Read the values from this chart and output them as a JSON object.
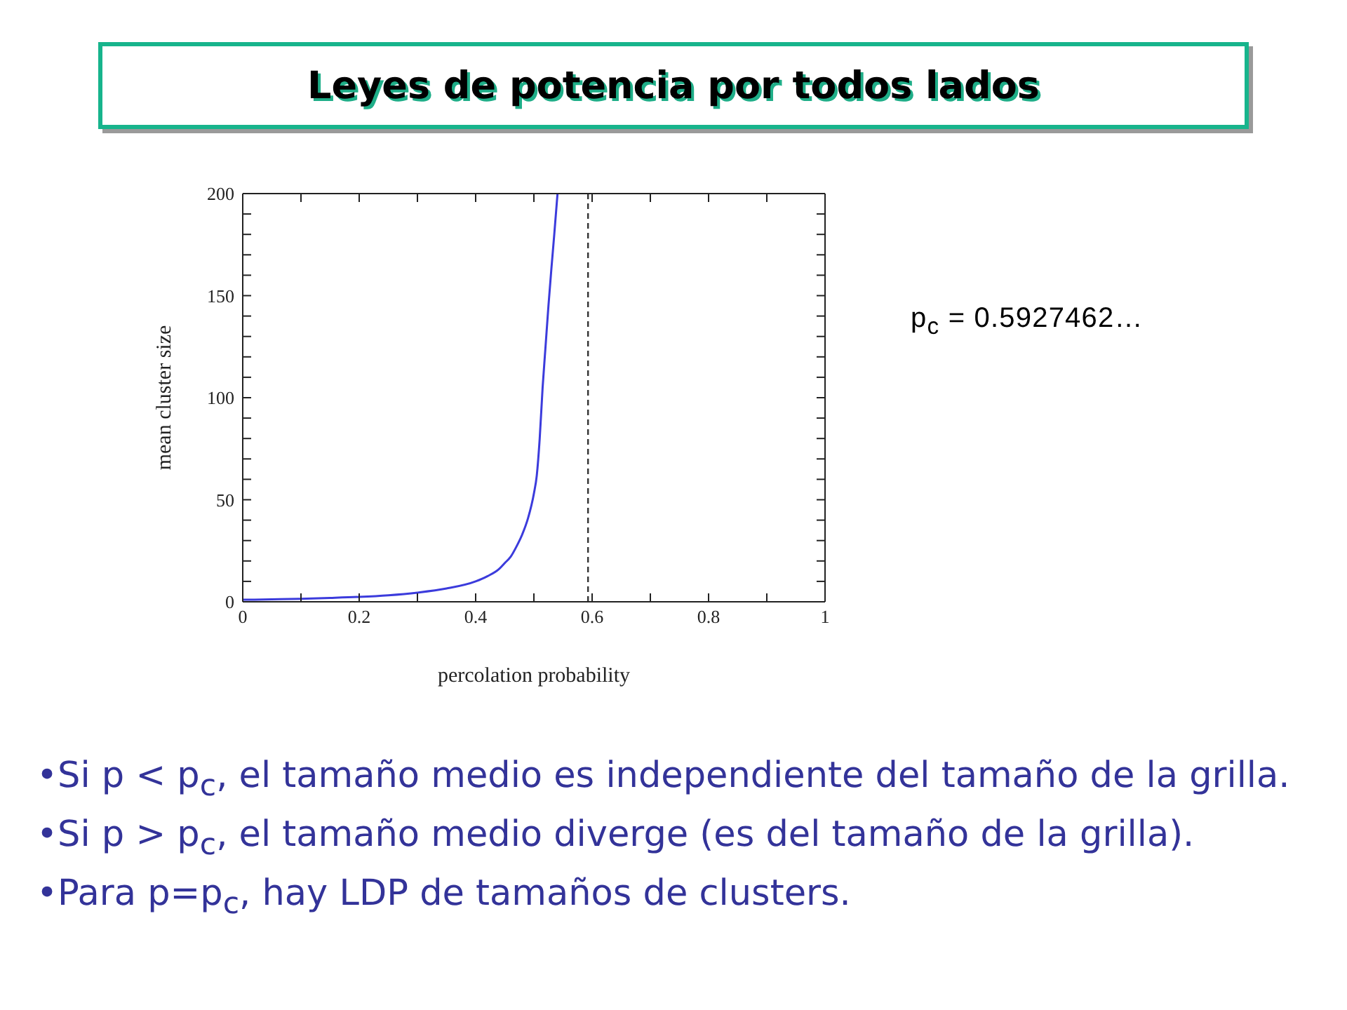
{
  "chart_data": {
    "type": "line",
    "title": "Leyes de potencia por todos lados",
    "xlabel": "percolation probability",
    "ylabel": "mean cluster size",
    "annotations": [
      "p$_{c}$ = 0.5927462…",
      "•Si p < p$_{c}$, el tamaño medio es independiente del tamaño de la grilla.",
      "•Si p > p$_{c}$, el tamaño medio diverge (es del tamaño de la grilla).",
      "•Para p=p$_{c}$, hay LDP de tamaños de clusters."
    ],
    "x": [
      0,
      0.05,
      0.1,
      0.15,
      0.2,
      0.25,
      0.3,
      0.35,
      0.4,
      0.42,
      0.44,
      0.45,
      0.46,
      0.47,
      0.48,
      0.49,
      0.5,
      0.505,
      0.51,
      0.515,
      0.52,
      0.525,
      0.53,
      0.535,
      0.5406
    ],
    "values": [
      1,
      1.2,
      1.5,
      1.9,
      2.4,
      3.2,
      4.5,
      6.5,
      10,
      12.5,
      16,
      19,
      22,
      27,
      33,
      41,
      53,
      62,
      80,
      105,
      125,
      145,
      163,
      180,
      200
    ],
    "color": "#3b3bdc",
    "xlim": [
      0,
      1
    ],
    "ylim": [
      0,
      200
    ],
    "xticks": [
      0,
      {
        "value": 0.1,
        "label": null
      },
      0.2,
      {
        "value": 0.3,
        "label": null
      },
      0.4,
      {
        "value": 0.5,
        "label": null
      },
      0.6,
      {
        "value": 0.7,
        "label": null
      },
      0.8,
      {
        "value": 0.9,
        "label": null
      },
      1
    ],
    "yticks": [
      0,
      {
        "value": 10,
        "label": null
      },
      {
        "value": 20,
        "label": null
      },
      {
        "value": 30,
        "label": null
      },
      {
        "value": 40,
        "label": null
      },
      50,
      {
        "value": 60,
        "label": null
      },
      {
        "value": 70,
        "label": null
      },
      {
        "value": 80,
        "label": null
      },
      {
        "value": 90,
        "label": null
      },
      100,
      {
        "value": 110,
        "label": null
      },
      {
        "value": 120,
        "label": null
      },
      {
        "value": 130,
        "label": null
      },
      {
        "value": 140,
        "label": null
      },
      150,
      {
        "value": 160,
        "label": null
      },
      {
        "value": 170,
        "label": null
      },
      {
        "value": 180,
        "label": null
      },
      {
        "value": 190,
        "label": null
      },
      200
    ],
    "ref_lines": [
      {
        "axis": "x",
        "value": 0.593,
        "color": "#333333",
        "line_style": "dashed"
      }
    ]
  }
}
